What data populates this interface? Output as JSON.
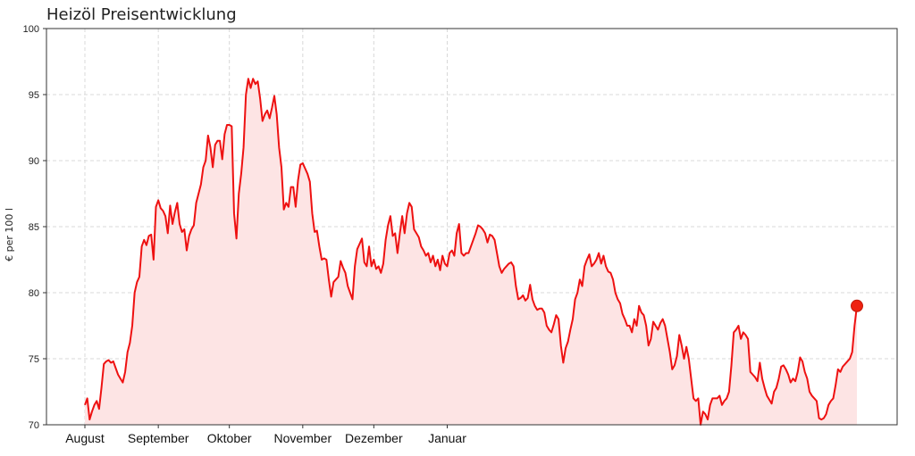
{
  "chart_data": {
    "type": "area",
    "title": "Heizöl Preisentwicklung",
    "xlabel": "",
    "ylabel": "€ per 100 l",
    "ylim": [
      70,
      100
    ],
    "y_ticks": [
      70,
      75,
      80,
      85,
      90,
      95,
      100
    ],
    "x_ticks": [
      "August",
      "September",
      "Oktober",
      "November",
      "Dezember",
      "Januar"
    ],
    "grid": true,
    "line_color": "#ee1111",
    "fill_color": "#fde4e4",
    "marker_color": "#ee2211",
    "series": [
      {
        "x_unit": "day index from first x tick",
        "values": [
          71.5,
          72.0,
          70.4,
          71.0,
          71.5,
          71.8,
          71.2,
          72.8,
          74.6,
          74.8,
          74.9,
          74.7,
          74.8,
          74.3,
          73.8,
          73.5,
          73.2,
          74.0,
          75.5,
          76.2,
          77.5,
          80.0,
          80.8,
          81.2,
          83.5,
          84.0,
          83.6,
          84.3,
          84.4,
          82.5,
          86.5,
          87.0,
          86.4,
          86.2,
          85.8,
          84.5,
          86.6,
          85.2,
          86.1,
          86.8,
          85.2,
          84.6,
          84.8,
          83.2,
          84.3,
          84.8,
          85.1,
          86.8,
          87.5,
          88.2,
          89.5,
          90.0,
          91.9,
          91.0,
          89.5,
          91.2,
          91.5,
          91.5,
          90.1,
          92.0,
          92.7,
          92.7,
          92.6,
          86.0,
          84.1,
          87.5,
          89.0,
          91.0,
          95.0,
          96.2,
          95.5,
          96.2,
          95.8,
          96.0,
          94.7,
          93.0,
          93.5,
          93.8,
          93.2,
          94.0,
          94.9,
          93.5,
          91.0,
          89.5,
          86.3,
          86.8,
          86.5,
          88.0,
          88.0,
          86.5,
          88.5,
          89.7,
          89.8,
          89.4,
          89.0,
          88.4,
          86.0,
          84.6,
          84.7,
          83.5,
          82.5,
          82.6,
          82.5,
          81.0,
          79.7,
          80.8,
          81.0,
          81.2,
          82.4,
          81.9,
          81.5,
          80.5,
          80.0,
          79.5,
          82.0,
          83.3,
          83.7,
          84.1,
          82.3,
          82.0,
          83.5,
          82.0,
          82.5,
          81.8,
          82.0,
          81.5,
          82.2,
          84.0,
          85.1,
          85.8,
          84.3,
          84.5,
          83.0,
          84.5,
          85.8,
          84.5,
          86.0,
          86.8,
          86.5,
          84.8,
          84.5,
          84.2,
          83.5,
          83.2,
          82.8,
          83.0,
          82.3,
          82.8,
          82.0,
          82.5,
          81.7,
          82.8,
          82.2,
          82.0,
          83.0,
          83.2,
          82.8,
          84.5,
          85.2,
          83.0,
          82.8,
          83.0,
          83.0,
          83.5,
          84.0,
          84.5,
          85.1,
          85.0,
          84.8,
          84.5,
          83.8,
          84.4,
          84.3,
          84.0,
          83.0,
          82.0,
          81.5,
          81.8,
          82.0,
          82.2,
          82.3,
          82.0,
          80.5,
          79.5,
          79.6,
          79.8,
          79.4,
          79.6,
          80.6,
          79.5,
          79.0,
          78.7,
          78.8,
          78.8,
          78.5,
          77.5,
          77.2,
          77.0,
          77.6,
          78.3,
          78.0,
          76.0,
          74.7,
          75.8,
          76.3,
          77.2,
          78.0,
          79.5,
          80.0,
          81.0,
          80.5,
          82.0,
          82.5,
          82.9,
          82.0,
          82.2,
          82.5,
          83.0,
          82.2,
          82.8,
          82.0,
          81.6,
          81.5,
          81.0,
          80.0,
          79.5,
          79.2,
          78.4,
          78.0,
          77.5,
          77.5,
          77.0,
          78.0,
          77.5,
          79.0,
          78.5,
          78.3,
          77.5,
          76.0,
          76.5,
          77.8,
          77.5,
          77.2,
          77.7,
          78.0,
          77.5,
          76.5,
          75.5,
          74.2,
          74.5,
          75.2,
          76.8,
          76.0,
          75.0,
          75.9,
          75.0,
          73.5,
          72.0,
          71.8,
          72.0,
          70.0,
          71.0,
          70.8,
          70.4,
          71.5,
          72.0,
          72.0,
          72.0,
          72.2,
          71.5,
          71.8,
          72.0,
          72.5,
          74.5,
          77.0,
          77.2,
          77.5,
          76.5,
          77.0,
          76.8,
          76.5,
          74.0,
          73.8,
          73.6,
          73.3,
          74.7,
          73.5,
          72.8,
          72.2,
          71.9,
          71.6,
          72.5,
          72.8,
          73.5,
          74.4,
          74.5,
          74.2,
          73.8,
          73.2,
          73.5,
          73.3,
          74.0,
          75.1,
          74.8,
          74.0,
          73.5,
          72.5,
          72.2,
          72.0,
          71.8,
          70.5,
          70.4,
          70.5,
          70.8,
          71.5,
          71.8,
          72.0,
          73.0,
          74.2,
          74.0,
          74.4,
          74.6,
          74.8,
          75.0,
          75.5,
          77.5,
          79.0
        ]
      }
    ],
    "x_tick_positions": [
      0,
      31,
      61,
      92,
      122,
      153
    ],
    "last_point_marker": true
  }
}
